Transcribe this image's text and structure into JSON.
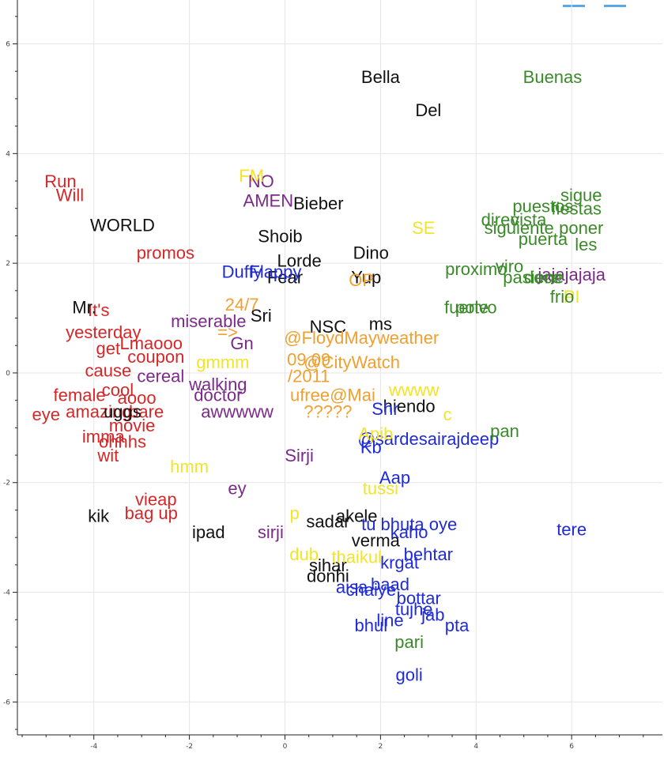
{
  "chart_data": {
    "type": "scatter",
    "title": "",
    "xlabel": "",
    "ylabel": "",
    "xlim": [
      -5.6,
      7.9
    ],
    "ylim": [
      -6.6,
      6.8
    ],
    "x_ticks": [
      -4,
      -2,
      0,
      2,
      4,
      6
    ],
    "y_ticks": [
      -6,
      -4,
      -2,
      0,
      2,
      4,
      6
    ],
    "grid": true,
    "colors": {
      "red": "#d62728",
      "black": "#111111",
      "purple": "#7b2a8a",
      "blue": "#1f2bd6",
      "yellow": "#f2e42b",
      "orange": "#f0a030",
      "green": "#3a8a2a"
    },
    "series": [
      {
        "color": "red",
        "points": [
          {
            "x": -4.7,
            "y": 3.5,
            "label": "Run"
          },
          {
            "x": -4.5,
            "y": 3.25,
            "label": "Will"
          },
          {
            "x": -2.5,
            "y": 2.2,
            "label": "promos"
          },
          {
            "x": -3.9,
            "y": 1.15,
            "label": "It's"
          },
          {
            "x": -3.8,
            "y": 0.75,
            "label": "yesterday"
          },
          {
            "x": -2.8,
            "y": 0.55,
            "label": "Lmaooo"
          },
          {
            "x": -3.7,
            "y": 0.45,
            "label": "get"
          },
          {
            "x": -2.7,
            "y": 0.3,
            "label": "coupon"
          },
          {
            "x": -3.7,
            "y": 0.05,
            "label": "cause"
          },
          {
            "x": -3.5,
            "y": -0.3,
            "label": "cool"
          },
          {
            "x": -4.3,
            "y": -0.4,
            "label": "female"
          },
          {
            "x": -3.1,
            "y": -0.45,
            "label": "aooo"
          },
          {
            "x": -3.9,
            "y": -0.7,
            "label": "amazing"
          },
          {
            "x": -2.9,
            "y": -0.7,
            "label": "bare"
          },
          {
            "x": -5.0,
            "y": -0.75,
            "label": "eye"
          },
          {
            "x": -3.2,
            "y": -0.95,
            "label": "movie"
          },
          {
            "x": -3.8,
            "y": -1.15,
            "label": "imma"
          },
          {
            "x": -3.4,
            "y": -1.25,
            "label": "ohhhs"
          },
          {
            "x": -3.7,
            "y": -1.5,
            "label": "wit"
          },
          {
            "x": -2.7,
            "y": -2.3,
            "label": "vieap"
          },
          {
            "x": -2.8,
            "y": -2.55,
            "label": "bag up"
          }
        ]
      },
      {
        "color": "black",
        "points": [
          {
            "x": 2.0,
            "y": 5.4,
            "label": "Bella"
          },
          {
            "x": 3.0,
            "y": 4.8,
            "label": "Del"
          },
          {
            "x": 0.7,
            "y": 3.1,
            "label": "Bieber"
          },
          {
            "x": -3.4,
            "y": 2.7,
            "label": "WORLD"
          },
          {
            "x": -0.1,
            "y": 2.5,
            "label": "Shoib"
          },
          {
            "x": 0.3,
            "y": 2.05,
            "label": "Lorde"
          },
          {
            "x": 1.8,
            "y": 2.2,
            "label": "Dino"
          },
          {
            "x": 0.0,
            "y": 1.75,
            "label": "Fear"
          },
          {
            "x": 1.7,
            "y": 1.75,
            "label": "Yup"
          },
          {
            "x": -4.2,
            "y": 1.2,
            "label": "Mr."
          },
          {
            "x": -0.5,
            "y": 1.05,
            "label": "Sri"
          },
          {
            "x": 0.9,
            "y": 0.85,
            "label": "NSC"
          },
          {
            "x": 2.0,
            "y": 0.9,
            "label": "ms"
          },
          {
            "x": 2.6,
            "y": -0.6,
            "label": "hiendo"
          },
          {
            "x": -3.4,
            "y": -0.7,
            "label": "uggs"
          },
          {
            "x": -3.9,
            "y": -2.6,
            "label": "kik"
          },
          {
            "x": -1.6,
            "y": -2.9,
            "label": "ipad"
          },
          {
            "x": 1.5,
            "y": -2.6,
            "label": "akele"
          },
          {
            "x": 0.9,
            "y": -2.7,
            "label": "sadar"
          },
          {
            "x": 1.9,
            "y": -3.05,
            "label": "verma"
          },
          {
            "x": 0.9,
            "y": -3.5,
            "label": "sihar"
          },
          {
            "x": 0.9,
            "y": -3.7,
            "label": "donhi"
          }
        ]
      },
      {
        "color": "purple",
        "points": [
          {
            "x": -0.5,
            "y": 3.5,
            "label": "NO"
          },
          {
            "x": -0.35,
            "y": 3.15,
            "label": "AMEN"
          },
          {
            "x": -1.6,
            "y": 0.95,
            "label": "miserable"
          },
          {
            "x": -0.9,
            "y": 0.55,
            "label": "Gn"
          },
          {
            "x": -2.6,
            "y": -0.05,
            "label": "cereal"
          },
          {
            "x": -1.4,
            "y": -0.2,
            "label": "walking"
          },
          {
            "x": -1.4,
            "y": -0.4,
            "label": "doctor"
          },
          {
            "x": -1.0,
            "y": -0.7,
            "label": "awwwww"
          },
          {
            "x": 6.0,
            "y": 1.8,
            "label": "jajajajaja"
          },
          {
            "x": 0.3,
            "y": -1.5,
            "label": "Sirji"
          },
          {
            "x": -1.0,
            "y": -2.1,
            "label": "ey"
          },
          {
            "x": -0.3,
            "y": -2.9,
            "label": "sirji"
          }
        ]
      },
      {
        "color": "blue",
        "points": [
          {
            "x": -0.9,
            "y": 1.85,
            "label": "Duffy"
          },
          {
            "x": -0.2,
            "y": 1.85,
            "label": "Flappy"
          },
          {
            "x": 2.1,
            "y": -0.65,
            "label": "Shr"
          },
          {
            "x": 3.0,
            "y": -1.2,
            "label": "@sardesairajdeep"
          },
          {
            "x": 1.8,
            "y": -1.35,
            "label": "Kb"
          },
          {
            "x": 2.3,
            "y": -1.9,
            "label": "Aap"
          },
          {
            "x": 2.6,
            "y": -2.75,
            "label": "tu bhuta oye"
          },
          {
            "x": 6.0,
            "y": -2.85,
            "label": "tere"
          },
          {
            "x": 2.6,
            "y": -2.9,
            "label": "kaho"
          },
          {
            "x": 3.0,
            "y": -3.3,
            "label": "behtar"
          },
          {
            "x": 2.4,
            "y": -3.45,
            "label": "krgat"
          },
          {
            "x": 1.4,
            "y": -3.9,
            "label": "aisa"
          },
          {
            "x": 2.2,
            "y": -3.85,
            "label": "baad"
          },
          {
            "x": 1.8,
            "y": -3.95,
            "label": "chaiye"
          },
          {
            "x": 2.8,
            "y": -4.1,
            "label": "bottar"
          },
          {
            "x": 2.7,
            "y": -4.3,
            "label": "tujhe"
          },
          {
            "x": 3.1,
            "y": -4.4,
            "label": "jab"
          },
          {
            "x": 2.2,
            "y": -4.5,
            "label": "line"
          },
          {
            "x": 1.8,
            "y": -4.6,
            "label": "bhul"
          },
          {
            "x": 3.6,
            "y": -4.6,
            "label": "pta"
          },
          {
            "x": 2.6,
            "y": -5.5,
            "label": "goli"
          }
        ]
      },
      {
        "color": "yellow",
        "points": [
          {
            "x": -0.7,
            "y": 3.6,
            "label": "FM"
          },
          {
            "x": 2.9,
            "y": 2.65,
            "label": "SE"
          },
          {
            "x": -1.3,
            "y": 0.2,
            "label": "gmmm"
          },
          {
            "x": 2.7,
            "y": -0.3,
            "label": "wwww"
          },
          {
            "x": 3.4,
            "y": -0.75,
            "label": "c"
          },
          {
            "x": -2.0,
            "y": -1.7,
            "label": "hmm"
          },
          {
            "x": 1.9,
            "y": -1.1,
            "label": "Apib"
          },
          {
            "x": 0.2,
            "y": -2.55,
            "label": "p"
          },
          {
            "x": 0.4,
            "y": -3.3,
            "label": "dub"
          },
          {
            "x": 1.5,
            "y": -3.35,
            "label": "thaikul"
          },
          {
            "x": 6.0,
            "y": 1.4,
            "label": "PI"
          },
          {
            "x": 2.0,
            "y": -2.1,
            "label": "tussi"
          }
        ]
      },
      {
        "color": "orange",
        "points": [
          {
            "x": -0.9,
            "y": 1.25,
            "label": "24/7"
          },
          {
            "x": 1.6,
            "y": 0.65,
            "label": "@FloydMayweather"
          },
          {
            "x": 0.5,
            "y": 0.25,
            "label": "09.09"
          },
          {
            "x": 1.4,
            "y": 0.2,
            "label": "@CityWatch"
          },
          {
            "x": 0.5,
            "y": -0.05,
            "label": "/2011"
          },
          {
            "x": 1.0,
            "y": -0.4,
            "label": "ufree@Mai"
          },
          {
            "x": 0.9,
            "y": -0.7,
            "label": "?????"
          },
          {
            "x": -1.2,
            "y": 0.75,
            "label": "=>"
          },
          {
            "x": 1.6,
            "y": 1.7,
            "label": "OP"
          }
        ]
      },
      {
        "color": "green",
        "points": [
          {
            "x": 5.6,
            "y": 5.4,
            "label": "Buenas"
          },
          {
            "x": 6.2,
            "y": 3.25,
            "label": "sigue"
          },
          {
            "x": 5.4,
            "y": 3.05,
            "label": "puestos"
          },
          {
            "x": 6.1,
            "y": 3.0,
            "label": "fiestas"
          },
          {
            "x": 4.5,
            "y": 2.8,
            "label": "direc"
          },
          {
            "x": 5.1,
            "y": 2.8,
            "label": "vista"
          },
          {
            "x": 4.9,
            "y": 2.65,
            "label": "siguiente"
          },
          {
            "x": 6.2,
            "y": 2.65,
            "label": "poner"
          },
          {
            "x": 5.4,
            "y": 2.45,
            "label": "puerta"
          },
          {
            "x": 6.3,
            "y": 2.35,
            "label": "les"
          },
          {
            "x": 4.0,
            "y": 1.9,
            "label": "proximo"
          },
          {
            "x": 4.7,
            "y": 1.95,
            "label": "viro"
          },
          {
            "x": 5.2,
            "y": 1.75,
            "label": "pasiene"
          },
          {
            "x": 5.4,
            "y": 1.75,
            "label": "doce"
          },
          {
            "x": 5.8,
            "y": 1.4,
            "label": "frio"
          },
          {
            "x": 3.8,
            "y": 1.2,
            "label": "fuerte"
          },
          {
            "x": 4.0,
            "y": 1.2,
            "label": "polvo"
          },
          {
            "x": 4.6,
            "y": -1.05,
            "label": "pan"
          },
          {
            "x": 2.6,
            "y": -4.9,
            "label": "pari"
          }
        ]
      }
    ]
  }
}
